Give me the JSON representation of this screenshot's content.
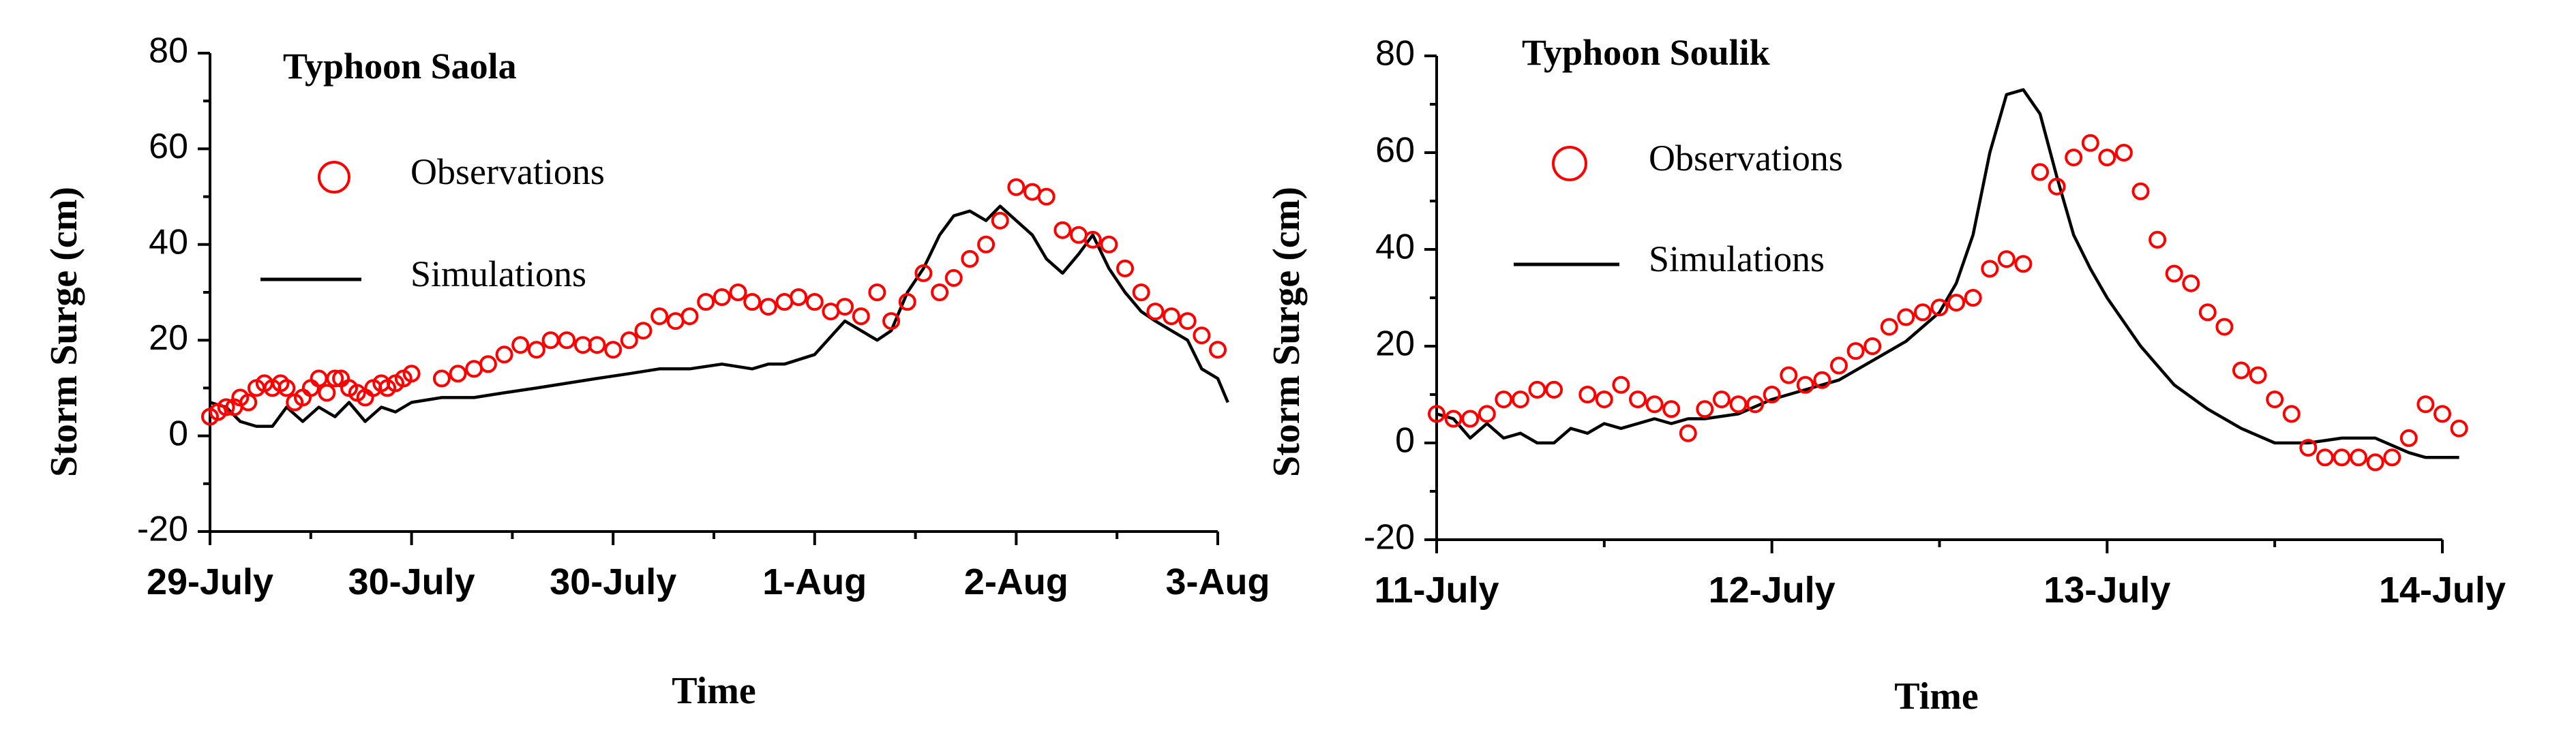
{
  "chart_data": [
    {
      "type": "line",
      "title": "Typhoon Saola",
      "xlabel": "Time",
      "ylabel": "Storm Surge (cm)",
      "ylim": [
        -20,
        80
      ],
      "yticks": [
        -20,
        0,
        20,
        40,
        60,
        80
      ],
      "xlim": [
        0,
        5
      ],
      "xticks": [
        0,
        1,
        2,
        3,
        4,
        5
      ],
      "xtick_labels": [
        "29-July",
        "30-July",
        "30-July",
        "1-Aug",
        "2-Aug",
        "3-Aug"
      ],
      "legend": [
        "Observations",
        "Simulations"
      ],
      "series": [
        {
          "name": "Simulations",
          "style": "line",
          "x": [
            0.0,
            0.08,
            0.15,
            0.23,
            0.31,
            0.38,
            0.46,
            0.54,
            0.62,
            0.69,
            0.77,
            0.85,
            0.92,
            1.0,
            1.15,
            1.31,
            1.46,
            1.62,
            1.77,
            1.92,
            2.08,
            2.23,
            2.38,
            2.54,
            2.69,
            2.77,
            2.85,
            3.0,
            3.15,
            3.31,
            3.38,
            3.46,
            3.54,
            3.62,
            3.69,
            3.77,
            3.85,
            3.92,
            4.0,
            4.08,
            4.15,
            4.23,
            4.31,
            4.38,
            4.46,
            4.54,
            4.62,
            4.69,
            4.77,
            4.85,
            4.92,
            5.0,
            5.05
          ],
          "y": [
            7,
            6,
            3,
            2,
            2,
            6,
            3,
            6,
            4,
            7,
            3,
            6,
            5,
            7,
            8,
            8,
            9,
            10,
            11,
            12,
            13,
            14,
            14,
            15,
            14,
            15,
            15,
            17,
            24,
            20,
            22,
            30,
            35,
            42,
            46,
            47,
            45,
            48,
            45,
            42,
            37,
            34,
            38,
            42,
            35,
            30,
            26,
            24,
            22,
            20,
            14,
            12,
            7
          ]
        },
        {
          "name": "Observations",
          "style": "marker",
          "x": [
            0.0,
            0.04,
            0.08,
            0.12,
            0.15,
            0.19,
            0.23,
            0.27,
            0.31,
            0.35,
            0.38,
            0.42,
            0.46,
            0.5,
            0.54,
            0.58,
            0.62,
            0.65,
            0.69,
            0.73,
            0.77,
            0.81,
            0.85,
            0.88,
            0.92,
            0.96,
            1.0,
            1.15,
            1.23,
            1.31,
            1.38,
            1.46,
            1.54,
            1.62,
            1.69,
            1.77,
            1.85,
            1.92,
            2.0,
            2.08,
            2.15,
            2.23,
            2.31,
            2.38,
            2.46,
            2.54,
            2.62,
            2.69,
            2.77,
            2.85,
            2.92,
            3.0,
            3.08,
            3.15,
            3.23,
            3.31,
            3.38,
            3.46,
            3.54,
            3.62,
            3.69,
            3.77,
            3.85,
            3.92,
            4.0,
            4.08,
            4.15,
            4.23,
            4.31,
            4.38,
            4.46,
            4.54,
            4.62,
            4.69,
            4.77,
            4.85,
            4.92,
            5.0
          ],
          "y": [
            4,
            5,
            6,
            6,
            8,
            7,
            10,
            11,
            10,
            11,
            10,
            7,
            8,
            10,
            12,
            9,
            12,
            12,
            10,
            9,
            8,
            10,
            11,
            10,
            11,
            12,
            13,
            12,
            13,
            14,
            15,
            17,
            19,
            18,
            20,
            20,
            19,
            19,
            18,
            20,
            22,
            25,
            24,
            25,
            28,
            29,
            30,
            28,
            27,
            28,
            29,
            28,
            26,
            27,
            25,
            30,
            24,
            28,
            34,
            30,
            33,
            37,
            40,
            45,
            52,
            51,
            50,
            43,
            42,
            41,
            40,
            35,
            30,
            26,
            25,
            24,
            21,
            18
          ]
        }
      ]
    },
    {
      "type": "line",
      "title": "Typhoon Soulik",
      "xlabel": "Time",
      "ylabel": "Storm Surge (cm)",
      "ylim": [
        -20,
        80
      ],
      "yticks": [
        -20,
        0,
        20,
        40,
        60,
        80
      ],
      "xlim": [
        0,
        3
      ],
      "xticks": [
        0,
        1,
        2,
        3
      ],
      "xtick_labels": [
        "11-July",
        "12-July",
        "13-July",
        "14-July"
      ],
      "legend": [
        "Observations",
        "Simulations"
      ],
      "series": [
        {
          "name": "Simulations",
          "style": "line",
          "x": [
            0.0,
            0.05,
            0.1,
            0.15,
            0.2,
            0.25,
            0.3,
            0.35,
            0.4,
            0.45,
            0.5,
            0.55,
            0.6,
            0.65,
            0.7,
            0.75,
            0.8,
            0.9,
            1.0,
            1.1,
            1.2,
            1.3,
            1.4,
            1.5,
            1.55,
            1.6,
            1.65,
            1.7,
            1.75,
            1.8,
            1.85,
            1.9,
            1.95,
            2.0,
            2.1,
            2.2,
            2.3,
            2.4,
            2.5,
            2.6,
            2.7,
            2.8,
            2.9,
            2.95,
            3.0,
            3.05
          ],
          "y": [
            6,
            5,
            1,
            4,
            1,
            2,
            0,
            0,
            3,
            2,
            4,
            3,
            4,
            5,
            4,
            5,
            5,
            6,
            9,
            11,
            13,
            17,
            21,
            27,
            33,
            43,
            60,
            72,
            73,
            68,
            55,
            43,
            36,
            30,
            20,
            12,
            7,
            3,
            0,
            0,
            1,
            1,
            -2,
            -3,
            -3,
            -3
          ]
        },
        {
          "name": "Observations",
          "style": "marker",
          "x": [
            0.0,
            0.05,
            0.1,
            0.15,
            0.2,
            0.25,
            0.3,
            0.35,
            0.45,
            0.5,
            0.55,
            0.6,
            0.65,
            0.7,
            0.75,
            0.8,
            0.85,
            0.9,
            0.95,
            1.0,
            1.05,
            1.1,
            1.15,
            1.2,
            1.25,
            1.3,
            1.35,
            1.4,
            1.45,
            1.5,
            1.55,
            1.6,
            1.65,
            1.7,
            1.75,
            1.8,
            1.85,
            1.9,
            1.95,
            2.0,
            2.05,
            2.1,
            2.15,
            2.2,
            2.25,
            2.3,
            2.35,
            2.4,
            2.45,
            2.5,
            2.55,
            2.6,
            2.65,
            2.7,
            2.75,
            2.8,
            2.85,
            2.9,
            2.95,
            3.0,
            3.05
          ],
          "y": [
            6,
            5,
            5,
            6,
            9,
            9,
            11,
            11,
            10,
            9,
            12,
            9,
            8,
            7,
            2,
            7,
            9,
            8,
            8,
            10,
            14,
            12,
            13,
            16,
            19,
            20,
            24,
            26,
            27,
            28,
            29,
            30,
            36,
            38,
            37,
            56,
            53,
            59,
            62,
            59,
            60,
            52,
            42,
            35,
            33,
            27,
            24,
            15,
            14,
            9,
            6,
            -1,
            -3,
            -3,
            -3,
            -4,
            -3,
            1,
            8,
            6,
            3
          ]
        }
      ]
    }
  ]
}
